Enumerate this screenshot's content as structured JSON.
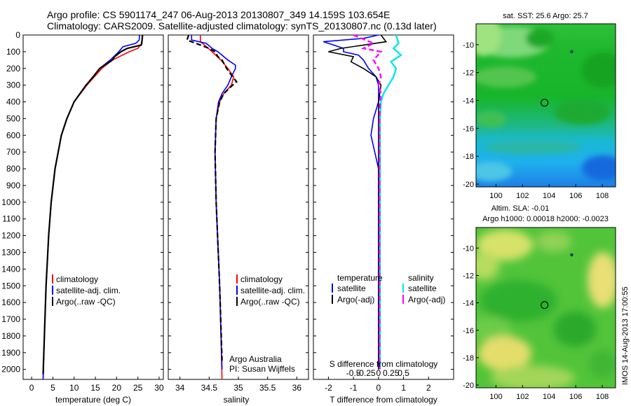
{
  "title": {
    "line1": "Argo profile: CS 5901174_247 06-Aug-2013 20130807_349 14.159S 103.654E",
    "line2": "Climatology: CARS2009. Satellite-adjusted climatology: synTS_20130807.nc (0.13d later)"
  },
  "side_stamp": "IMOS 14-Aug-2013 17:00:55",
  "colors": {
    "climatology": "#ff0000",
    "satellite": "#0000ff",
    "argo": "#000000",
    "salinity_satellite": "#00e5ee",
    "salinity_argo": "#ff00ff"
  },
  "chart_data": [
    {
      "type": "line",
      "xlabel": "temperature (deg C)",
      "xlim": [
        -2,
        31
      ],
      "ylim": [
        2060,
        0
      ],
      "x_ticks": [
        0,
        5,
        10,
        15,
        20,
        25,
        30
      ],
      "y_ticks": [
        0,
        100,
        200,
        300,
        400,
        500,
        600,
        700,
        800,
        900,
        1000,
        1100,
        1200,
        1300,
        1400,
        1500,
        1600,
        1700,
        1800,
        1900,
        2000
      ],
      "legend": [
        "climatology",
        "satellite-adj. clim.",
        "Argo(..raw -QC)"
      ],
      "series": [
        {
          "name": "climatology",
          "depth": [
            0,
            50,
            80,
            100,
            150,
            200,
            300,
            400,
            500,
            600,
            800,
            1000,
            1200,
            1500,
            1800,
            2060
          ],
          "values": [
            26.0,
            26.0,
            25.0,
            23.0,
            19.0,
            16.5,
            13.0,
            10.0,
            8.3,
            7.0,
            5.5,
            4.6,
            4.0,
            3.4,
            3.0,
            2.7
          ]
        },
        {
          "name": "satellite-adj. clim.",
          "depth": [
            0,
            30,
            50,
            70,
            100,
            150,
            200,
            300,
            400,
            500,
            600,
            800,
            1000,
            1200,
            1500,
            1800,
            2060
          ],
          "values": [
            25.4,
            25.3,
            24.5,
            21.5,
            20.5,
            18.5,
            16.0,
            12.8,
            10.0,
            8.3,
            7.0,
            5.5,
            4.6,
            4.0,
            3.4,
            3.0,
            2.7
          ]
        },
        {
          "name": "Argo(..raw -QC)",
          "depth": [
            0,
            30,
            60,
            80,
            100,
            130,
            150,
            200,
            250,
            300,
            400,
            500,
            600,
            800,
            1000,
            1200,
            1500,
            1800,
            2030
          ],
          "values": [
            26.1,
            26.0,
            25.8,
            22.5,
            21.0,
            19.5,
            19.0,
            16.0,
            14.5,
            12.8,
            10.0,
            8.3,
            7.0,
            5.5,
            4.6,
            4.0,
            3.4,
            3.0,
            2.7
          ]
        }
      ]
    },
    {
      "type": "line",
      "xlabel": "salinity",
      "xlim": [
        33.8,
        36.2
      ],
      "ylim": [
        2060,
        0
      ],
      "x_ticks": [
        34,
        34.5,
        35,
        35.5,
        36
      ],
      "legend": [
        "climatology",
        "satellite-adj. clim.",
        "Argo(..raw -QC)"
      ],
      "annotation": [
        "Argo Australia",
        "PI: Susan Wijffels"
      ],
      "series": [
        {
          "name": "climatology",
          "depth": [
            0,
            40,
            60,
            100,
            150,
            200,
            250,
            300,
            350,
            400,
            500,
            700,
            1000,
            1500,
            2060
          ],
          "values": [
            34.35,
            34.35,
            34.42,
            34.55,
            34.7,
            34.82,
            34.92,
            34.88,
            34.75,
            34.68,
            34.62,
            34.6,
            34.62,
            34.68,
            34.72
          ]
        },
        {
          "name": "satellite-adj. clim.",
          "depth": [
            0,
            30,
            50,
            80,
            100,
            150,
            180,
            200,
            250,
            300,
            350,
            400,
            500,
            700,
            1000,
            1500,
            2000
          ],
          "values": [
            34.2,
            34.2,
            34.45,
            34.55,
            34.65,
            34.82,
            34.95,
            34.95,
            34.88,
            34.82,
            34.72,
            34.66,
            34.62,
            34.6,
            34.62,
            34.68,
            34.72
          ]
        },
        {
          "name": "Argo(..raw -QC)",
          "depth": [
            0,
            30,
            60,
            80,
            100,
            130,
            150,
            200,
            250,
            280,
            300,
            350,
            400,
            500,
            700,
            1000,
            1500,
            1950
          ],
          "values": [
            34.15,
            34.12,
            34.35,
            34.5,
            34.6,
            34.65,
            34.72,
            34.8,
            34.9,
            34.97,
            34.9,
            34.75,
            34.68,
            34.62,
            34.6,
            34.62,
            34.68,
            34.72
          ]
        }
      ]
    },
    {
      "type": "line",
      "xlabel": "T difference from climatology",
      "xlabel_top": "S difference from climatology",
      "xlim": [
        -2.6,
        3.0
      ],
      "ylim": [
        2060,
        0
      ],
      "x_ticks": [
        -2,
        -1,
        0,
        1,
        2
      ],
      "x_ticks_top": [
        "-0.5",
        "-0.25",
        "0",
        "0.25",
        "0.5"
      ],
      "legend_titles": [
        "temperature",
        "salinity"
      ],
      "legend": [
        "satellite",
        "Argo(-adj)",
        "satellite",
        "Argo(-adj)"
      ],
      "series": [
        {
          "name": "temperature satellite",
          "depth": [
            0,
            20,
            40,
            60,
            80,
            100,
            120,
            150,
            200,
            250,
            300,
            400,
            500,
            600,
            800,
            1000,
            1500,
            2000
          ],
          "values": [
            0.0,
            -0.6,
            -2.2,
            -1.8,
            -1.4,
            -1.4,
            -0.8,
            -0.6,
            -0.4,
            -0.1,
            0.0,
            0.0,
            -0.2,
            -0.3,
            0.0,
            0.0,
            0.0,
            0.0
          ]
        },
        {
          "name": "temperature Argo(-adj)",
          "depth": [
            0,
            40,
            80,
            100,
            130,
            160,
            200,
            250,
            300,
            400,
            500,
            600,
            800,
            1000,
            1500,
            2000
          ],
          "values": [
            0.1,
            0.3,
            -1.5,
            -2.0,
            -1.0,
            -1.1,
            -0.6,
            -0.1,
            0.1,
            0.0,
            0.0,
            0.0,
            0.0,
            0.0,
            0.0,
            0.0
          ]
        },
        {
          "name": "salinity satellite",
          "depth": [
            0,
            50,
            80,
            120,
            160,
            200,
            250,
            300,
            350,
            400,
            500,
            700,
            1000,
            1500,
            2000
          ],
          "values": [
            0.35,
            0.4,
            0.3,
            0.45,
            0.25,
            0.35,
            0.3,
            0.2,
            0.1,
            0.05,
            0.03,
            0.03,
            0.03,
            0.03,
            0.03
          ]
        },
        {
          "name": "salinity Argo(-adj)",
          "depth": [
            0,
            50,
            80,
            100,
            150,
            200,
            250,
            300,
            350,
            400,
            500,
            700,
            1000,
            1500,
            2000
          ],
          "values": [
            -0.5,
            -0.1,
            -0.3,
            0.05,
            -0.1,
            0.0,
            0.05,
            0.0,
            0.05,
            0.03,
            0.02,
            0.02,
            0.02,
            0.02,
            0.02
          ]
        }
      ]
    },
    {
      "type": "heatmap",
      "title": "sat. SST: 25.6 Argo: 25.7",
      "xlim": [
        98.5,
        109
      ],
      "ylim": [
        -20.2,
        -8.5
      ],
      "x_ticks": [
        100,
        102,
        104,
        106,
        108
      ],
      "y_ticks": [
        -10,
        -12,
        -14,
        -16,
        -18,
        -20
      ],
      "argo_marker": {
        "lon": 103.654,
        "lat": -14.159
      },
      "small_marker": {
        "lon": 105.7,
        "lat": -10.5
      }
    },
    {
      "type": "heatmap",
      "title_line1": "Altim. SLA: -0.01",
      "title_line2": "Argo h1000: 0.00018 h2000: -0.0023",
      "xlim": [
        98.5,
        109
      ],
      "ylim": [
        -20.2,
        -8.5
      ],
      "x_ticks": [
        100,
        102,
        104,
        106,
        108
      ],
      "y_ticks": [
        -10,
        -12,
        -14,
        -16,
        -18,
        -20
      ],
      "argo_marker": {
        "lon": 103.654,
        "lat": -14.159
      },
      "small_marker": {
        "lon": 105.7,
        "lat": -10.5
      }
    }
  ]
}
